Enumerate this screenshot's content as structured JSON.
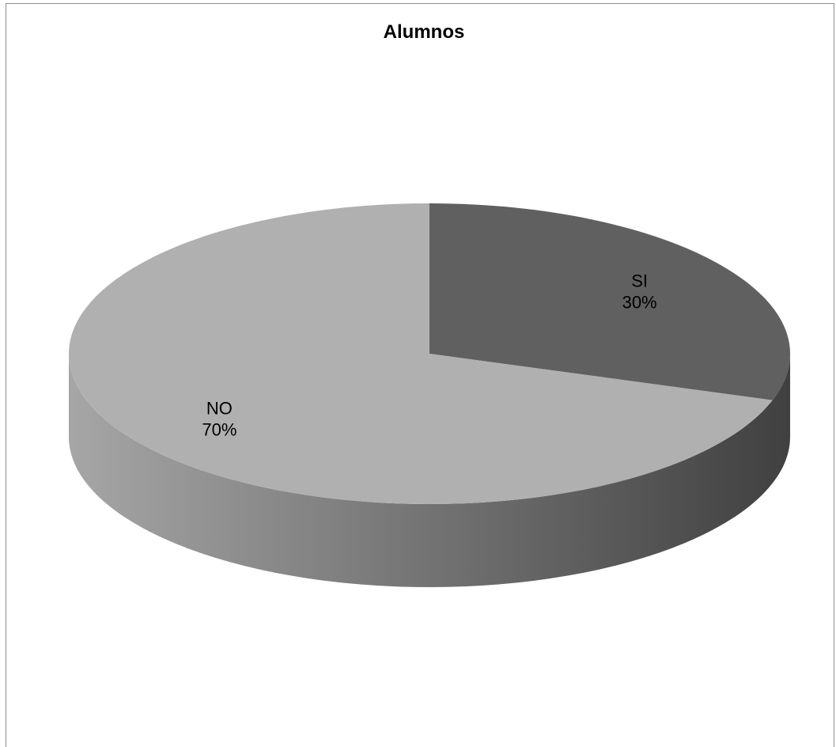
{
  "chart_data": {
    "type": "pie",
    "title": "Alumnos",
    "categories": [
      "SI",
      "NO"
    ],
    "values": [
      30,
      70
    ],
    "labels": [
      {
        "name": "SI",
        "percent": "30%"
      },
      {
        "name": "NO",
        "percent": "70%"
      }
    ],
    "start_angle_deg": 90,
    "direction": "clockwise",
    "three_d": true,
    "legend": "none",
    "colors": {
      "SI": "#606060",
      "NO": "#b0b0b0",
      "side_light": "#a6a6a6",
      "side_dark": "#404040",
      "frame_border": "#8c8c8c"
    }
  }
}
